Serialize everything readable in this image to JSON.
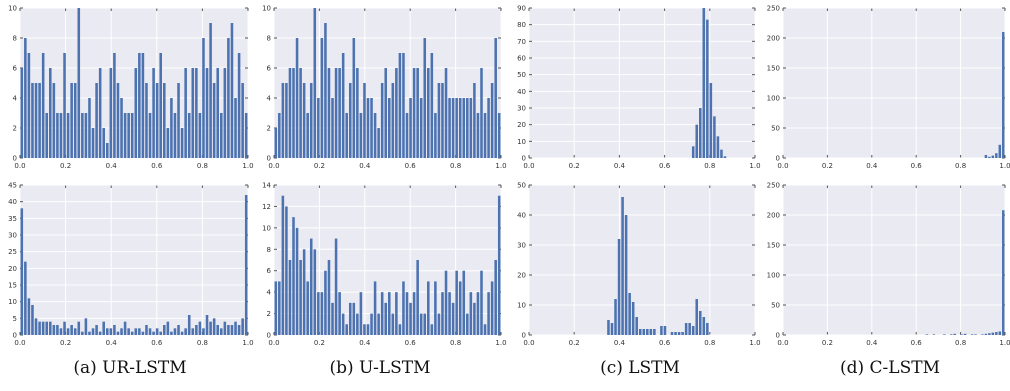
{
  "captions": [
    "(a) UR-LSTM",
    "(b) U-LSTM",
    "(c) LSTM",
    "(d) C-LSTM"
  ],
  "style": {
    "background": "#eaeaf2",
    "grid": "#ffffff",
    "bar": "#4c72b0"
  },
  "chart_data": [
    {
      "type": "bar",
      "panel": "UR-LSTM top",
      "bin_range": [
        0,
        1
      ],
      "xlim": [
        0,
        1
      ],
      "ylim": [
        0,
        10
      ],
      "xticks": [
        "0.0",
        "0.2",
        "0.4",
        "0.6",
        "0.8",
        "1.0"
      ],
      "yticks": [
        "0",
        "2",
        "4",
        "6",
        "8",
        "10"
      ],
      "grid": true,
      "values": [
        6,
        8,
        7,
        5,
        5,
        5,
        7,
        3,
        6,
        5,
        3,
        3,
        7,
        3,
        5,
        5,
        10,
        3,
        3,
        4,
        2,
        5,
        6,
        2,
        1,
        6,
        7,
        5,
        4,
        3,
        3,
        3,
        6,
        7,
        7,
        5,
        3,
        6,
        5,
        7,
        5,
        2,
        4,
        3,
        5,
        2,
        6,
        3,
        6,
        6,
        3,
        8,
        6,
        9,
        5,
        6,
        3,
        6,
        8,
        9,
        4,
        7,
        5,
        3
      ]
    },
    {
      "type": "bar",
      "panel": "U-LSTM top",
      "bin_range": [
        0,
        1
      ],
      "xlim": [
        0,
        1
      ],
      "ylim": [
        0,
        10
      ],
      "xticks": [
        "0.0",
        "0.2",
        "0.4",
        "0.6",
        "0.8",
        "1.0"
      ],
      "yticks": [
        "0",
        "2",
        "4",
        "6",
        "8",
        "10"
      ],
      "grid": true,
      "values": [
        2,
        3,
        5,
        5,
        6,
        6,
        8,
        6,
        5,
        3,
        5,
        10,
        4,
        8,
        9,
        6,
        4,
        6,
        6,
        7,
        3,
        5,
        8,
        6,
        3,
        5,
        4,
        4,
        3,
        2,
        5,
        6,
        4,
        5,
        6,
        7,
        7,
        3,
        4,
        6,
        6,
        4,
        8,
        6,
        7,
        3,
        5,
        5,
        6,
        4,
        4,
        4,
        4,
        4,
        4,
        4,
        5,
        3,
        6,
        3,
        4,
        5,
        8,
        3
      ]
    },
    {
      "type": "bar",
      "panel": "LSTM top",
      "bin_range": [
        0,
        1
      ],
      "xlim": [
        0,
        1
      ],
      "ylim": [
        0,
        90
      ],
      "xticks": [
        "0.0",
        "0.2",
        "0.4",
        "0.6",
        "0.8",
        "1.0"
      ],
      "yticks": [
        "0",
        "10",
        "20",
        "30",
        "40",
        "50",
        "60",
        "70",
        "80",
        "90"
      ],
      "grid": true,
      "values": [
        0,
        0,
        0,
        0,
        0,
        0,
        0,
        0,
        0,
        0,
        0,
        0,
        0,
        0,
        0,
        0,
        0,
        0,
        0,
        0,
        0,
        0,
        0,
        0,
        0,
        0,
        0,
        0,
        0,
        0,
        0,
        0,
        0,
        0,
        0,
        0,
        0,
        0,
        0,
        0,
        0,
        0,
        0,
        0,
        0,
        0,
        7,
        20,
        30,
        90,
        83,
        45,
        25,
        13,
        5,
        1,
        0,
        0,
        0,
        0,
        0,
        0,
        0,
        0
      ]
    },
    {
      "type": "bar",
      "panel": "C-LSTM top",
      "bin_range": [
        0,
        1
      ],
      "xlim": [
        0,
        1
      ],
      "ylim": [
        0,
        250
      ],
      "xticks": [
        "0.0",
        "0.2",
        "0.4",
        "0.6",
        "0.8",
        "1.0"
      ],
      "yticks": [
        "0",
        "50",
        "100",
        "150",
        "200",
        "250"
      ],
      "grid": true,
      "values": [
        0,
        0,
        0,
        0,
        0,
        0,
        0,
        0,
        0,
        0,
        0,
        0,
        0,
        0,
        0,
        0,
        0,
        0,
        0,
        0,
        0,
        0,
        0,
        0,
        0,
        0,
        0,
        0,
        0,
        0,
        0,
        0,
        0,
        0,
        0,
        0,
        0,
        0,
        0,
        0,
        0,
        0,
        0,
        0,
        0,
        0,
        0,
        0,
        0,
        0,
        0,
        0,
        0,
        0,
        0,
        0,
        0,
        0,
        5,
        2,
        4,
        8,
        22,
        210
      ]
    },
    {
      "type": "bar",
      "panel": "UR-LSTM bottom",
      "bin_range": [
        0,
        1
      ],
      "xlim": [
        0,
        1
      ],
      "ylim": [
        0,
        45
      ],
      "xticks": [
        "0.0",
        "0.2",
        "0.4",
        "0.6",
        "0.8",
        "1.0"
      ],
      "yticks": [
        "0",
        "5",
        "10",
        "15",
        "20",
        "25",
        "30",
        "35",
        "40",
        "45"
      ],
      "grid": true,
      "values": [
        38,
        22,
        11,
        9,
        5,
        4,
        4,
        4,
        4,
        3,
        3,
        2,
        4,
        2,
        3,
        2,
        4,
        1,
        5,
        1,
        2,
        3,
        1,
        4,
        2,
        2,
        3,
        1,
        2,
        4,
        2,
        1,
        2,
        2,
        1,
        3,
        2,
        1,
        2,
        1,
        3,
        4,
        1,
        2,
        3,
        1,
        2,
        6,
        2,
        3,
        4,
        2,
        6,
        4,
        5,
        3,
        2,
        4,
        3,
        3,
        4,
        3,
        5,
        42
      ]
    },
    {
      "type": "bar",
      "panel": "U-LSTM bottom",
      "bin_range": [
        0,
        1
      ],
      "xlim": [
        0,
        1
      ],
      "ylim": [
        0,
        14
      ],
      "xticks": [
        "0.0",
        "0.2",
        "0.4",
        "0.6",
        "0.8",
        "1.0"
      ],
      "yticks": [
        "0",
        "2",
        "4",
        "6",
        "8",
        "10",
        "12",
        "14"
      ],
      "grid": true,
      "values": [
        5,
        5,
        13,
        12,
        7,
        11,
        10,
        7,
        8,
        5,
        9,
        8,
        4,
        4,
        6,
        7,
        3,
        9,
        4,
        2,
        1,
        3,
        3,
        2,
        4,
        1,
        1,
        2,
        5,
        2,
        4,
        3,
        4,
        2,
        4,
        1,
        5,
        4,
        3,
        4,
        7,
        2,
        2,
        5,
        1,
        5,
        2,
        4,
        6,
        4,
        3,
        6,
        5,
        6,
        2,
        4,
        3,
        4,
        6,
        1,
        4,
        5,
        7,
        13
      ]
    },
    {
      "type": "bar",
      "panel": "LSTM bottom",
      "bin_range": [
        0,
        1
      ],
      "xlim": [
        0,
        1
      ],
      "ylim": [
        0,
        50
      ],
      "xticks": [
        "0.0",
        "0.2",
        "0.4",
        "0.6",
        "0.8",
        "1.0"
      ],
      "yticks": [
        "0",
        "10",
        "20",
        "30",
        "40",
        "50"
      ],
      "grid": true,
      "values": [
        0,
        0,
        0,
        0,
        0,
        0,
        0,
        0,
        0,
        0,
        0,
        0,
        0,
        0,
        0,
        0,
        0,
        0,
        0,
        0,
        0,
        0,
        5,
        4,
        12,
        32,
        46,
        40,
        14,
        11,
        6,
        2,
        2,
        2,
        2,
        2,
        0,
        3,
        3,
        0,
        1,
        1,
        1,
        1,
        4,
        4,
        3,
        12,
        8,
        6,
        4,
        0,
        0,
        0,
        0,
        0,
        0,
        0,
        0,
        0,
        0,
        0,
        0,
        0
      ]
    },
    {
      "type": "bar",
      "panel": "C-LSTM bottom",
      "bin_range": [
        0,
        1
      ],
      "xlim": [
        0,
        1
      ],
      "ylim": [
        0,
        250
      ],
      "xticks": [
        "0.0",
        "0.2",
        "0.4",
        "0.6",
        "0.8",
        "1.0"
      ],
      "yticks": [
        "0",
        "50",
        "100",
        "150",
        "200",
        "250"
      ],
      "grid": true,
      "values": [
        0,
        0,
        0,
        0,
        0,
        0,
        0,
        0,
        0,
        0,
        0,
        0,
        0,
        0,
        0,
        0,
        0,
        0,
        0,
        0,
        0,
        0,
        0,
        0,
        0,
        0,
        0,
        0,
        0,
        0,
        0,
        0,
        0,
        0,
        0,
        0,
        0,
        0,
        0,
        0,
        0,
        1,
        0,
        1,
        0,
        0,
        1,
        0,
        1,
        2,
        0,
        1,
        2,
        0,
        1,
        1,
        0,
        1,
        2,
        3,
        4,
        5,
        6,
        208
      ]
    }
  ]
}
